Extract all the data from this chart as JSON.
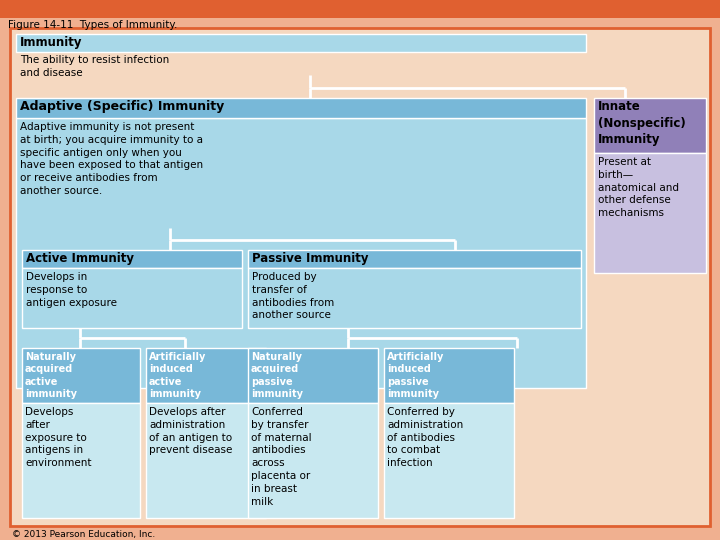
{
  "title": "Figure 14-11  Types of Immunity.",
  "bg_outer": "#f0b090",
  "bg_inner": "#f5d8c0",
  "orange_bar": "#e06030",
  "adaptive_header_bg": "#78b8d8",
  "adaptive_body_bg": "#a8d8e8",
  "sub_header_bg": "#78b8d8",
  "sub_body_bg": "#c8e8f0",
  "innate_header_bg": "#9080b8",
  "innate_body_bg": "#c8c0e0",
  "white": "#ffffff",
  "text_dark": "#000000",
  "footer": "© 2013 Pearson Education, Inc.",
  "immunity_title": "Immunity",
  "immunity_desc": "The ability to resist infection\nand disease",
  "adaptive_title": "Adaptive (Specific) Immunity",
  "adaptive_desc": "Adaptive immunity is not present\nat birth; you acquire immunity to a\nspecific antigen only when you\nhave been exposed to that antigen\nor receive antibodies from\nanother source.",
  "active_title": "Active Immunity",
  "active_desc": "Develops in\nresponse to\nantigen exposure",
  "passive_title": "Passive Immunity",
  "passive_desc": "Produced by\ntransfer of\nantibodies from\nanother source",
  "nat_active_title": "Naturally\nacquired\nactive\nimmunity",
  "nat_active_desc": "Develops\nafter\nexposure to\nantigens in\nenvironment",
  "art_active_title": "Artificially\ninduced\nactive\nimmunity",
  "art_active_desc": "Develops after\nadministration\nof an antigen to\nprevent disease",
  "nat_passive_title": "Naturally\nacquired\npassive\nimmunity",
  "nat_passive_desc": "Conferred\nby transfer\nof maternal\nantibodies\nacross\nplacenta or\nin breast\nmilk",
  "art_passive_title": "Artificially\ninduced\npassive\nimmunity",
  "art_passive_desc": "Conferred by\nadministration\nof antibodies\nto combat\ninfection",
  "innate_title": "Innate\n(Nonspecific)\nImmunity",
  "innate_desc": "Present at\nbirth—\nanatomical and\nother defense\nmechanisms"
}
